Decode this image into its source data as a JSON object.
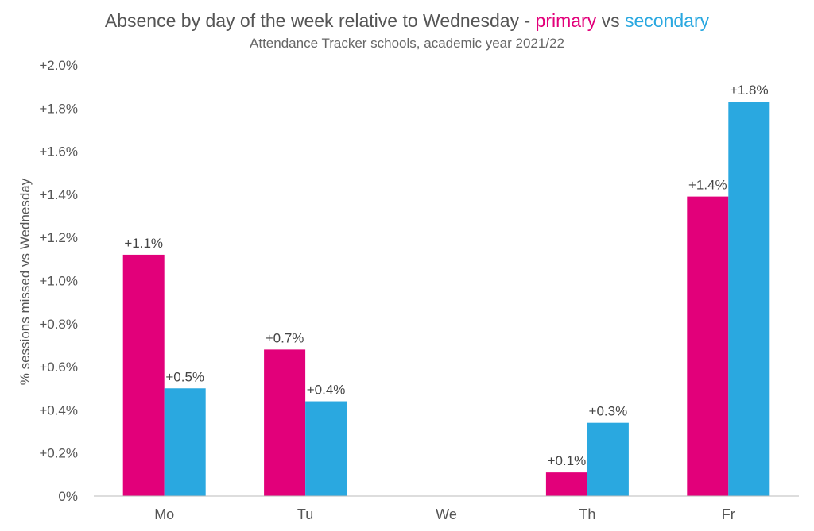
{
  "chart_data": {
    "type": "bar",
    "title_parts": {
      "main": "Absence by day of the week relative to Wednesday - ",
      "primary_word": "primary",
      "vs_word": " vs ",
      "secondary_word": "secondary"
    },
    "subtitle": "Attendance Tracker schools, academic year 2021/22",
    "ylabel": "% sessions missed vs Wednesday",
    "xlabel": "",
    "categories": [
      "Mo",
      "Tu",
      "We",
      "Th",
      "Fr"
    ],
    "ylim": [
      0,
      2.0
    ],
    "yticks": [
      0,
      0.2,
      0.4,
      0.6,
      0.8,
      1.0,
      1.2,
      1.4,
      1.6,
      1.8,
      2.0
    ],
    "ytick_labels": [
      "0%",
      "+0.2%",
      "+0.4%",
      "+0.6%",
      "+0.8%",
      "+1.0%",
      "+1.2%",
      "+1.4%",
      "+1.6%",
      "+1.8%",
      "+2.0%"
    ],
    "grid": false,
    "series": [
      {
        "name": "primary",
        "color": "#E2007A",
        "values": [
          1.12,
          0.68,
          null,
          0.11,
          1.39
        ],
        "labels": [
          "+1.1%",
          "+0.7%",
          "",
          "+0.1%",
          "+1.4%"
        ]
      },
      {
        "name": "secondary",
        "color": "#2AA8E0",
        "values": [
          0.5,
          0.44,
          null,
          0.34,
          1.83
        ],
        "labels": [
          "+0.5%",
          "+0.4%",
          "",
          "+0.3%",
          "+1.8%"
        ]
      }
    ]
  },
  "colors": {
    "primary": "#E2007A",
    "secondary": "#2AA8E0",
    "text": "#555555",
    "axis": "#bbbbbb"
  }
}
